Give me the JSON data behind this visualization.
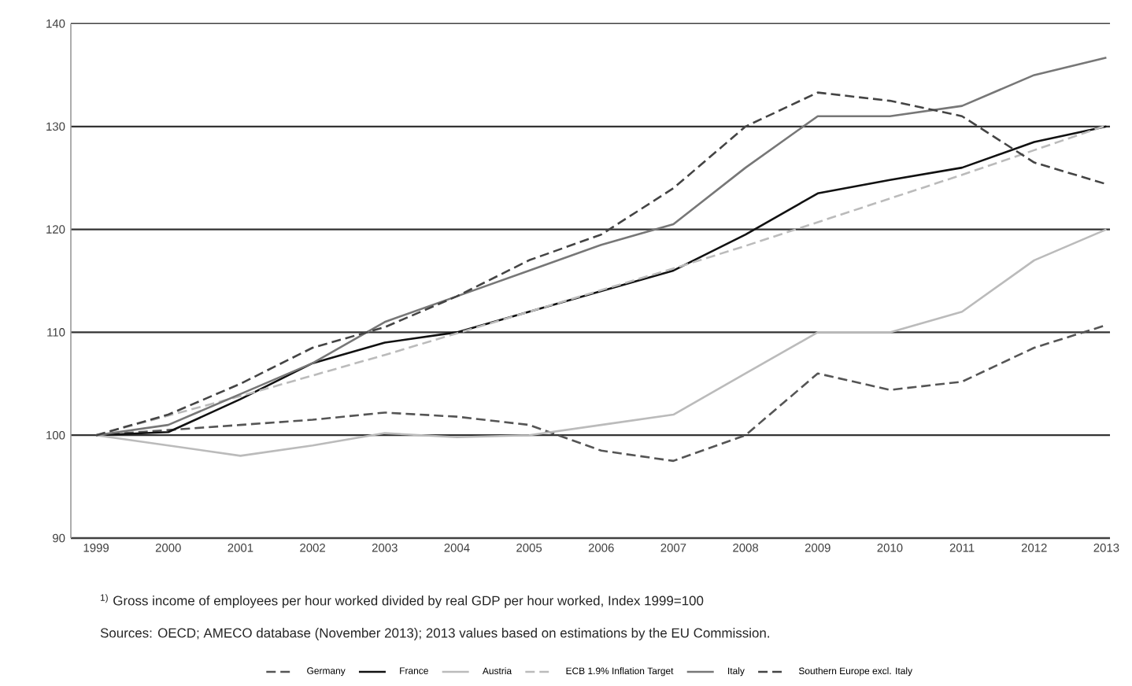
{
  "chart_data": {
    "type": "line",
    "categories": [
      "1999",
      "2000",
      "2001",
      "2002",
      "2003",
      "2004",
      "2005",
      "2006",
      "2007",
      "2008",
      "2009",
      "2010",
      "2011",
      "2012",
      "2013"
    ],
    "series": [
      {
        "name": "Germany",
        "color": "#555555",
        "line_style": "dashed",
        "values": [
          100,
          100.5,
          101,
          101.5,
          102.2,
          101.8,
          101,
          98.5,
          97.5,
          100,
          106,
          104.4,
          105.2,
          108.5,
          110.7
        ]
      },
      {
        "name": "France",
        "color": "#111111",
        "line_style": "solid",
        "values": [
          100,
          100.3,
          103.5,
          107,
          109,
          110,
          112,
          114,
          116,
          119.5,
          123.5,
          124.8,
          126,
          128.5,
          130
        ]
      },
      {
        "name": "Austria",
        "color": "#bbbbbb",
        "line_style": "solid",
        "values": [
          100,
          99,
          98,
          99,
          100.2,
          99.8,
          100,
          101,
          102,
          106,
          110,
          110,
          112,
          117,
          120
        ]
      },
      {
        "name": "ECB 1.9% Inflation Target",
        "color": "#bbbbbb",
        "line_style": "dashed",
        "values": [
          100,
          101.9,
          103.8,
          105.8,
          107.8,
          109.9,
          112,
          114.1,
          116.2,
          118.4,
          120.7,
          123,
          125.3,
          127.7,
          130.1
        ]
      },
      {
        "name": "Italy",
        "color": "#777777",
        "line_style": "solid",
        "values": [
          100,
          101,
          104,
          107,
          111,
          113.5,
          116,
          118.5,
          120.5,
          126,
          131,
          131,
          132,
          135,
          136.7
        ]
      },
      {
        "name": "Southern Europe excl. Italy",
        "color": "#444444",
        "line_style": "dashed",
        "values": [
          100,
          102,
          105,
          108.5,
          110.5,
          113.5,
          117,
          119.5,
          124,
          130,
          133.3,
          132.5,
          131,
          126.5,
          124.4
        ]
      }
    ],
    "ylim": [
      90,
      140
    ],
    "yticks": [
      90,
      100,
      110,
      120,
      130,
      140
    ],
    "grid": "y",
    "legend": "bottom",
    "marker": "none",
    "annotations": [
      "$^{1)}$ Gross income of employees per hour worked divided by real GDP per hour worked, Index 1999=100",
      "Sources: OECD; AMECO database (November 2013); 2013 values based on estimations by the EU Commission."
    ]
  }
}
